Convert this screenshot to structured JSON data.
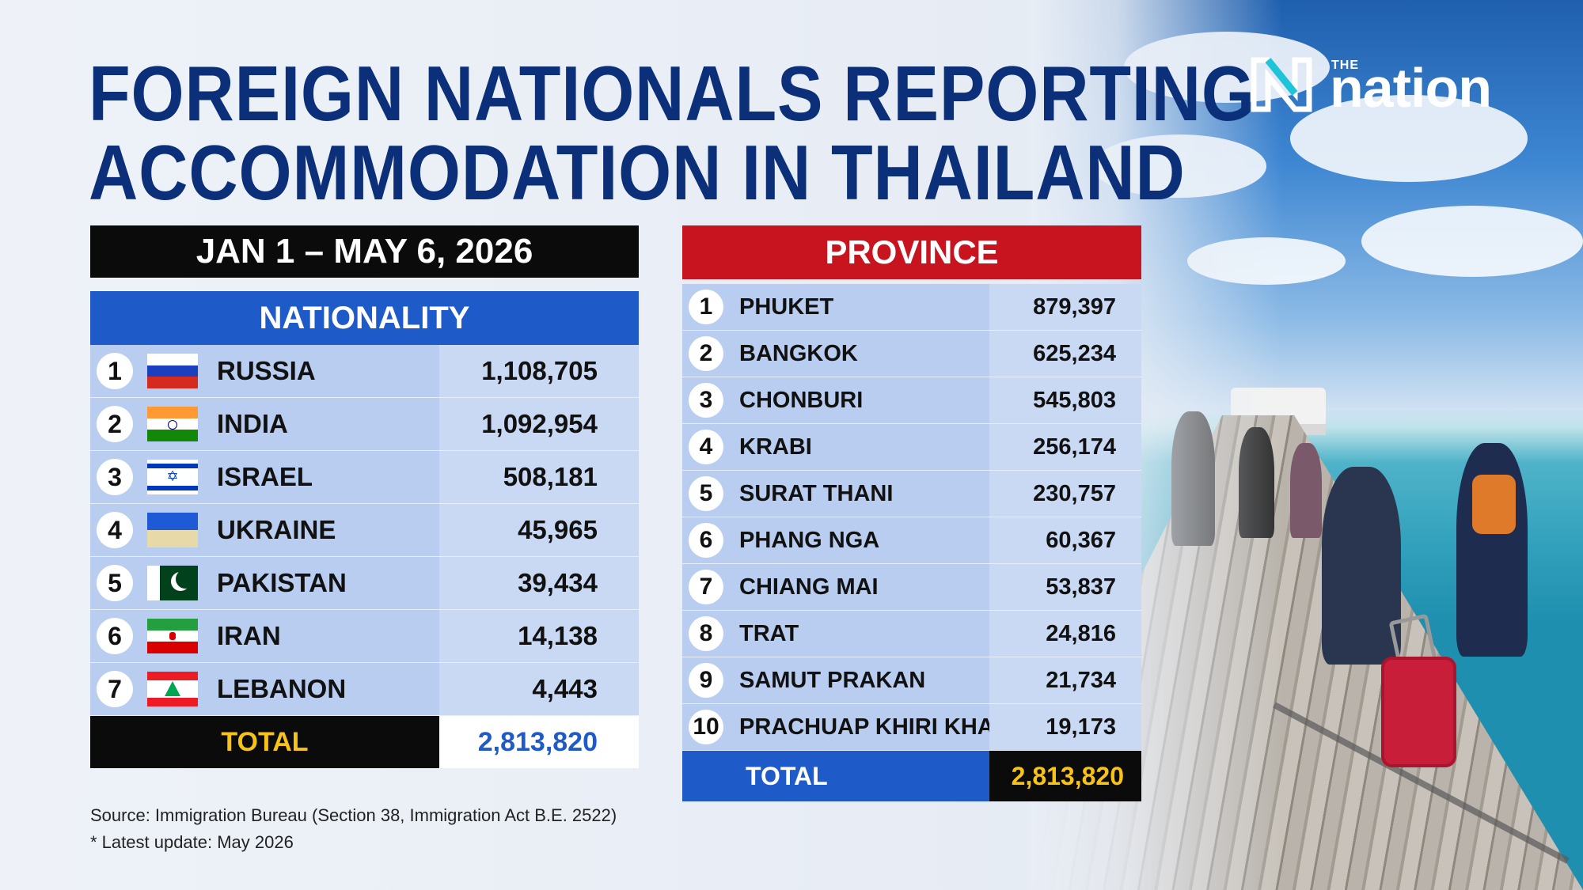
{
  "title_lines": [
    "FOREIGN NATIONALS REPORTING",
    "ACCOMMODATION IN THAILAND"
  ],
  "logo": {
    "the": "THE",
    "word": "nation"
  },
  "date_range": "JAN 1 – MAY 6, 2026",
  "colors": {
    "title": "#0b2f79",
    "nationality_header": "#1f5bc8",
    "province_header": "#c8141f",
    "total_highlight": "#f7c317",
    "row_fill": "#b9cdf0"
  },
  "chart_data": [
    {
      "type": "table",
      "title": "NATIONALITY",
      "columns": [
        "rank",
        "country",
        "count"
      ],
      "rows": [
        {
          "rank": "1",
          "name": "RUSSIA",
          "flag": "russia-flag-icon",
          "value": "1,108,705"
        },
        {
          "rank": "2",
          "name": "INDIA",
          "flag": "india-flag-icon",
          "value": "1,092,954"
        },
        {
          "rank": "3",
          "name": "ISRAEL",
          "flag": "israel-flag-icon",
          "value": "508,181"
        },
        {
          "rank": "4",
          "name": "UKRAINE",
          "flag": "ukraine-flag-icon",
          "value": "45,965"
        },
        {
          "rank": "5",
          "name": "PAKISTAN",
          "flag": "pakistan-flag-icon",
          "value": "39,434"
        },
        {
          "rank": "6",
          "name": "IRAN",
          "flag": "iran-flag-icon",
          "value": "14,138"
        },
        {
          "rank": "7",
          "name": "LEBANON",
          "flag": "lebanon-flag-icon",
          "value": "4,443"
        }
      ],
      "total_label": "TOTAL",
      "total_value": "2,813,820"
    },
    {
      "type": "table",
      "title": "PROVINCE",
      "columns": [
        "rank",
        "province",
        "count"
      ],
      "rows": [
        {
          "rank": "1",
          "name": "PHUKET",
          "value": "879,397"
        },
        {
          "rank": "2",
          "name": "BANGKOK",
          "value": "625,234"
        },
        {
          "rank": "3",
          "name": "CHONBURI",
          "value": "545,803"
        },
        {
          "rank": "4",
          "name": "KRABI",
          "value": "256,174"
        },
        {
          "rank": "5",
          "name": "SURAT THANI",
          "value": "230,757"
        },
        {
          "rank": "6",
          "name": "PHANG NGA",
          "value": "60,367"
        },
        {
          "rank": "7",
          "name": "CHIANG MAI",
          "value": "53,837"
        },
        {
          "rank": "8",
          "name": "TRAT",
          "value": "24,816"
        },
        {
          "rank": "9",
          "name": "SAMUT PRAKAN",
          "value": "21,734"
        },
        {
          "rank": "10",
          "name": "PRACHUAP KHIRI KHAN",
          "value": "19,173"
        }
      ],
      "total_label": "TOTAL",
      "total_value": "2,813,820"
    }
  ],
  "footnotes": {
    "source": "Source: Immigration Bureau (Section 38, Immigration Act B.E. 2522)",
    "update": "* Latest update: May 2026"
  }
}
